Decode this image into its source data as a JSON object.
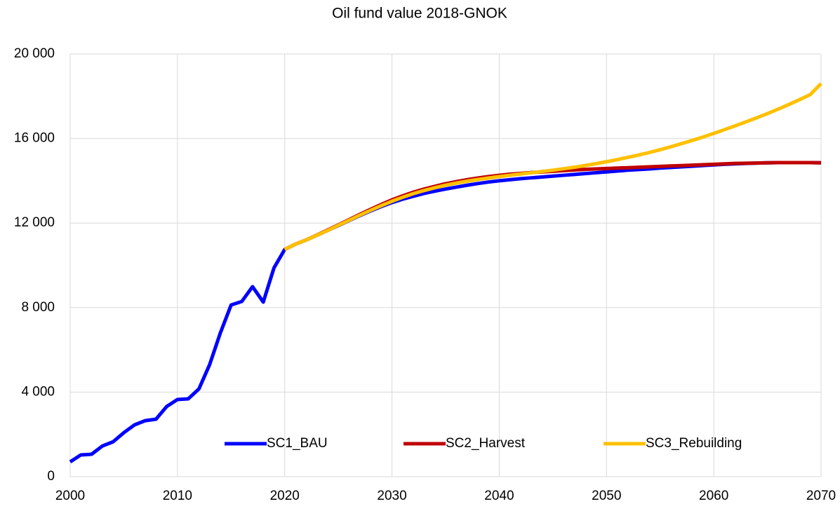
{
  "chart_data": {
    "type": "line",
    "title": "Oil fund value 2018-GNOK",
    "x": [
      2000,
      2001,
      2002,
      2003,
      2004,
      2005,
      2006,
      2007,
      2008,
      2009,
      2010,
      2011,
      2012,
      2013,
      2014,
      2015,
      2016,
      2017,
      2018,
      2019,
      2020,
      2021,
      2022,
      2023,
      2024,
      2025,
      2026,
      2027,
      2028,
      2029,
      2030,
      2031,
      2032,
      2033,
      2034,
      2035,
      2036,
      2037,
      2038,
      2039,
      2040,
      2041,
      2042,
      2043,
      2044,
      2045,
      2046,
      2047,
      2048,
      2049,
      2050,
      2051,
      2052,
      2053,
      2054,
      2055,
      2056,
      2057,
      2058,
      2059,
      2060,
      2061,
      2062,
      2063,
      2064,
      2065,
      2066,
      2067,
      2068,
      2069,
      2070
    ],
    "series": [
      {
        "name": "SC1_BAU",
        "color": "#0000ff",
        "values": [
          700,
          1030,
          1060,
          1450,
          1650,
          2080,
          2450,
          2650,
          2720,
          3320,
          3650,
          3680,
          4150,
          5300,
          6800,
          8120,
          8290,
          8990,
          8260,
          9880,
          10750,
          11000,
          11200,
          11420,
          11650,
          11880,
          12120,
          12350,
          12570,
          12780,
          12970,
          13130,
          13270,
          13400,
          13510,
          13610,
          13700,
          13790,
          13870,
          13940,
          14000,
          14050,
          14100,
          14140,
          14180,
          14220,
          14260,
          14300,
          14340,
          14380,
          14420,
          14460,
          14500,
          14530,
          14560,
          14600,
          14630,
          14660,
          14690,
          14720,
          14750,
          14780,
          14800,
          14820,
          14840,
          14850,
          14860,
          14860,
          14860,
          14860,
          14850
        ]
      },
      {
        "name": "SC2_Harvest",
        "color": "#c00000",
        "values": [
          null,
          null,
          null,
          null,
          null,
          null,
          null,
          null,
          null,
          null,
          null,
          null,
          null,
          null,
          null,
          null,
          null,
          null,
          null,
          null,
          10750,
          11000,
          11200,
          11430,
          11670,
          11910,
          12160,
          12410,
          12650,
          12880,
          13100,
          13290,
          13460,
          13610,
          13740,
          13860,
          13960,
          14050,
          14130,
          14200,
          14260,
          14310,
          14350,
          14390,
          14420,
          14450,
          14480,
          14510,
          14540,
          14560,
          14580,
          14600,
          14620,
          14640,
          14660,
          14680,
          14700,
          14720,
          14740,
          14760,
          14780,
          14800,
          14820,
          14830,
          14840,
          14850,
          14860,
          14860,
          14860,
          14860,
          14850
        ]
      },
      {
        "name": "SC3_Rebuilding",
        "color": "#ffc000",
        "values": [
          null,
          null,
          null,
          null,
          null,
          null,
          null,
          null,
          null,
          null,
          null,
          null,
          null,
          null,
          null,
          null,
          null,
          null,
          null,
          null,
          10750,
          11000,
          11200,
          11420,
          11650,
          11890,
          12130,
          12370,
          12600,
          12820,
          13030,
          13220,
          13390,
          13540,
          13670,
          13790,
          13890,
          13980,
          14060,
          14130,
          14200,
          14260,
          14320,
          14380,
          14440,
          14500,
          14570,
          14640,
          14720,
          14810,
          14900,
          15000,
          15110,
          15220,
          15340,
          15470,
          15610,
          15760,
          15910,
          16070,
          16240,
          16420,
          16600,
          16790,
          16980,
          17180,
          17390,
          17610,
          17840,
          18080,
          18600
        ]
      }
    ],
    "xlim": [
      2000,
      2070
    ],
    "xticks": [
      2000,
      2010,
      2020,
      2030,
      2040,
      2050,
      2060,
      2070
    ],
    "ylim": [
      0,
      20000
    ],
    "yticks": [
      0,
      {
        "value": 4000,
        "label": "4 000"
      },
      {
        "value": 8000,
        "label": "8 000"
      },
      {
        "value": 12000,
        "label": "12 000"
      },
      {
        "value": 16000,
        "label": "16 000"
      },
      {
        "value": 20000,
        "label": "20 000"
      }
    ],
    "grid": true,
    "legend": "bottom"
  }
}
